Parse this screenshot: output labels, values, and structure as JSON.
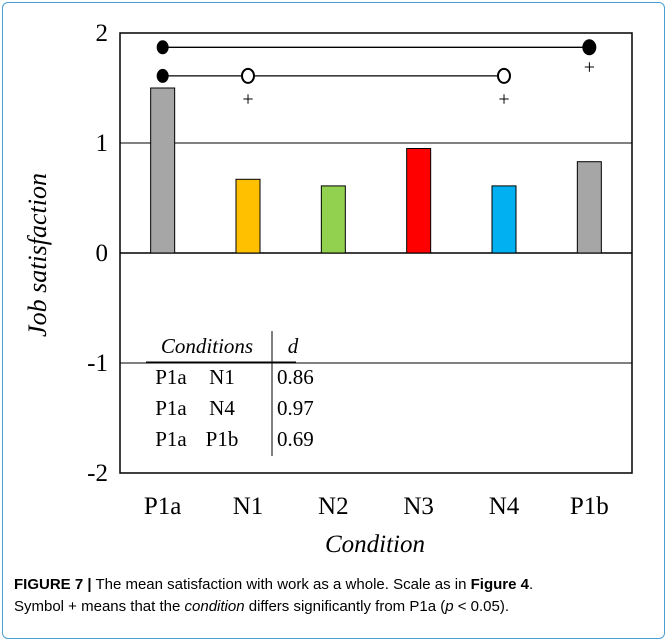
{
  "chart_data": {
    "type": "bar",
    "xlabel": "Condition",
    "ylabel": "Job satisfaction",
    "ylim": [
      -2,
      2
    ],
    "yticks": [
      "2",
      "1",
      "0",
      "-1",
      "-2"
    ],
    "categories": [
      "P1a",
      "N1",
      "N2",
      "N3",
      "N4",
      "P1b"
    ],
    "values": [
      1.5,
      0.67,
      0.61,
      0.95,
      0.61,
      0.83
    ],
    "colors": [
      "#a6a6a6",
      "#ffc000",
      "#92d050",
      "#ff0000",
      "#00b0f0",
      "#a6a6a6"
    ],
    "grid": "horizontal",
    "significance": {
      "brackets": [
        {
          "from": "P1a",
          "to": "P1b",
          "level": 1.87,
          "end_marker": "filled"
        },
        {
          "from": "P1a",
          "to": "N4",
          "level": 1.61,
          "mid": "N1",
          "end_marker": "open"
        }
      ],
      "plus_marks": [
        {
          "category": "N1",
          "text": "+"
        },
        {
          "category": "N4",
          "text": "+"
        },
        {
          "category": "P1b",
          "text": "+"
        }
      ]
    },
    "effect_table": {
      "header": [
        "Conditions",
        "d"
      ],
      "rows": [
        [
          "P1a",
          "N1",
          "0.86"
        ],
        [
          "P1a",
          "N4",
          "0.97"
        ],
        [
          "P1a",
          "P1b",
          "0.69"
        ]
      ]
    }
  },
  "caption": {
    "label": "FIGURE 7 |",
    "part1": " The mean satisfaction with work as a whole. Scale as in ",
    "ref": "Figure 4",
    "part2": ".",
    "part3": "Symbol + means that the ",
    "cond": "condition",
    "part4": " differs significantly from P1a (",
    "p": "p",
    "part5": " < 0.05)."
  }
}
